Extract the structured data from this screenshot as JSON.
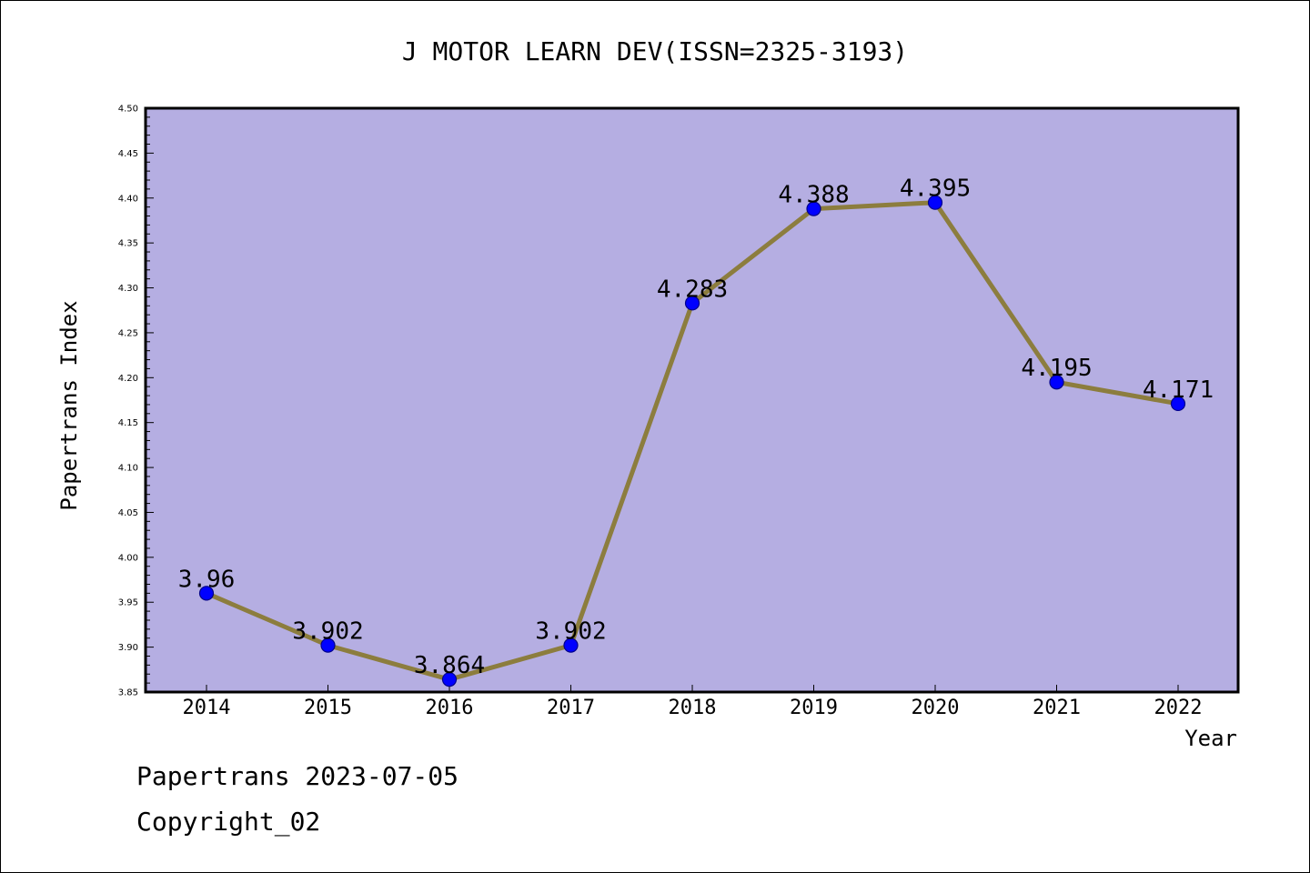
{
  "chart_data": {
    "type": "line",
    "title": "J MOTOR LEARN DEV(ISSN=2325-3193)",
    "xlabel": "Year",
    "ylabel": "Papertrans Index",
    "categories": [
      "2014",
      "2015",
      "2016",
      "2017",
      "2018",
      "2019",
      "2020",
      "2021",
      "2022"
    ],
    "series": [
      {
        "values": [
          3.96,
          3.902,
          3.864,
          3.902,
          4.283,
          4.388,
          4.395,
          4.195,
          4.171
        ],
        "data_labels": [
          "3.96",
          "3.902",
          "3.864",
          "3.902",
          "4.283",
          "4.388",
          "4.395",
          "4.195",
          "4.171"
        ]
      }
    ],
    "ylim": [
      3.85,
      4.5
    ],
    "yticks": [
      "3.85",
      "3.90",
      "3.95",
      "4.00",
      "4.05",
      "4.10",
      "4.15",
      "4.20",
      "4.25",
      "4.30",
      "4.35",
      "4.40",
      "4.45",
      "4.50"
    ],
    "grid": false,
    "colors": {
      "plot_background": "#b5aee2",
      "line": "#8c7d3e",
      "marker": "#0000ff",
      "marker_edge": "#00008b",
      "axis": "#000000"
    }
  },
  "footer": {
    "line1": "Papertrans 2023-07-05",
    "line2": "Copyright_02"
  }
}
